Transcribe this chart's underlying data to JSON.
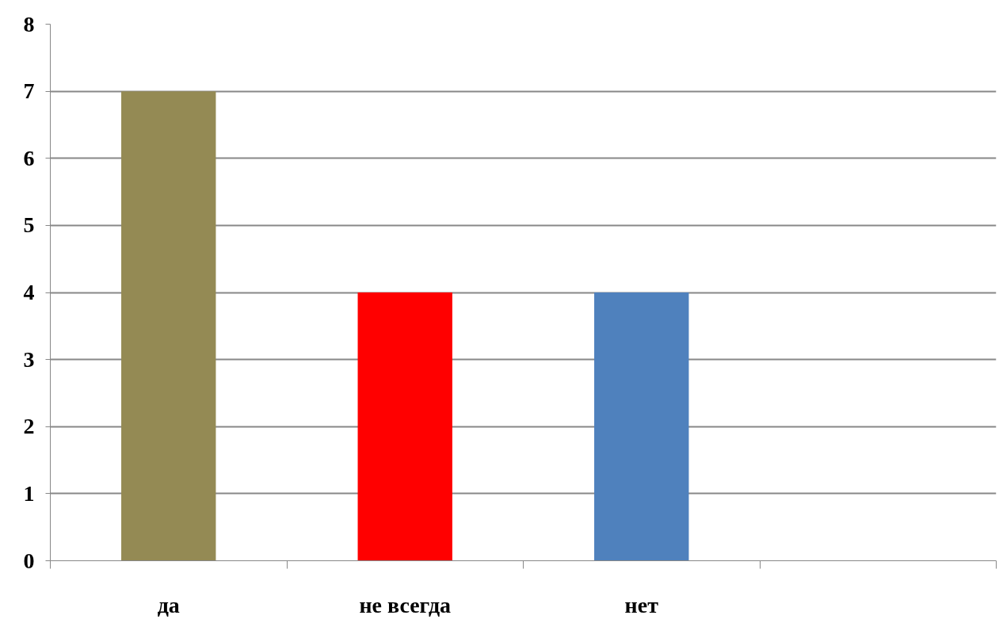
{
  "chart_data": {
    "type": "bar",
    "categories": [
      "да",
      "не всегда",
      "нет",
      null
    ],
    "values": [
      7,
      4,
      4,
      null
    ],
    "colors": [
      "#948a54",
      "#ff0000",
      "#4f81bd",
      "#4f81bd"
    ],
    "ylim": [
      0,
      8
    ],
    "yticks": [
      0,
      1,
      2,
      3,
      4,
      5,
      6,
      7,
      8
    ],
    "grid": "y"
  }
}
